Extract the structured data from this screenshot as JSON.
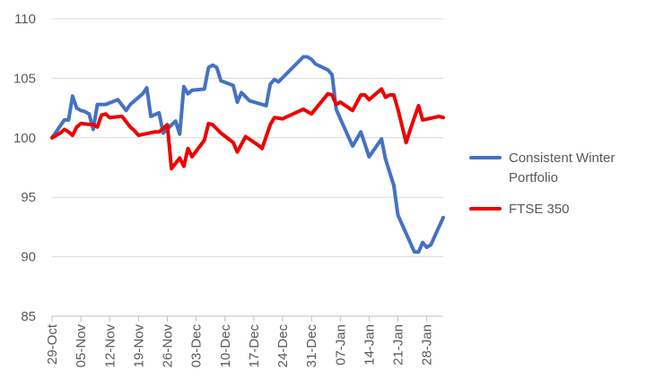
{
  "chart_data": {
    "type": "line",
    "title": "",
    "xlabel": "",
    "ylabel": "",
    "ylim": [
      85,
      110
    ],
    "yticks": [
      85,
      90,
      95,
      100,
      105,
      110
    ],
    "grid": "horizontal",
    "legend_position": "right",
    "x_tick_labels": [
      "29-Oct",
      "05-Nov",
      "12-Nov",
      "19-Nov",
      "26-Nov",
      "03-Dec",
      "10-Dec",
      "17-Dec",
      "24-Dec",
      "31-Dec",
      "07-Jan",
      "14-Jan",
      "21-Jan",
      "28-Jan"
    ],
    "x_tick_dates": [
      "2018-10-29",
      "2018-11-05",
      "2018-11-12",
      "2018-11-19",
      "2018-11-26",
      "2018-12-03",
      "2018-12-10",
      "2018-12-17",
      "2018-12-24",
      "2018-12-31",
      "2019-01-07",
      "2019-01-14",
      "2019-01-21",
      "2019-01-28"
    ],
    "x_range": [
      "2018-10-29",
      "2019-02-01"
    ],
    "series": [
      {
        "name": "Consistent Winter Portfolio",
        "color": "#4472C4",
        "points": [
          [
            "2018-10-29",
            100.0
          ],
          [
            "2018-10-30",
            100.5
          ],
          [
            "2018-10-31",
            101.0
          ],
          [
            "2018-11-01",
            101.5
          ],
          [
            "2018-11-02",
            101.5
          ],
          [
            "2018-11-03",
            103.5
          ],
          [
            "2018-11-04",
            102.5
          ],
          [
            "2018-11-05",
            102.3
          ],
          [
            "2018-11-06",
            102.2
          ],
          [
            "2018-11-07",
            102.0
          ],
          [
            "2018-11-08",
            100.7
          ],
          [
            "2018-11-09",
            102.8
          ],
          [
            "2018-11-11",
            102.8
          ],
          [
            "2018-11-14",
            103.2
          ],
          [
            "2018-11-16",
            102.3
          ],
          [
            "2018-11-17",
            102.8
          ],
          [
            "2018-11-20",
            103.7
          ],
          [
            "2018-11-21",
            104.2
          ],
          [
            "2018-11-22",
            101.8
          ],
          [
            "2018-11-24",
            102.1
          ],
          [
            "2018-11-25",
            100.4
          ],
          [
            "2018-11-28",
            101.4
          ],
          [
            "2018-11-29",
            100.3
          ],
          [
            "2018-11-30",
            104.3
          ],
          [
            "2018-12-01",
            103.7
          ],
          [
            "2018-12-02",
            104.0
          ],
          [
            "2018-12-05",
            104.1
          ],
          [
            "2018-12-06",
            105.9
          ],
          [
            "2018-12-07",
            106.1
          ],
          [
            "2018-12-08",
            105.9
          ],
          [
            "2018-12-09",
            104.8
          ],
          [
            "2018-12-12",
            104.4
          ],
          [
            "2018-12-13",
            103.0
          ],
          [
            "2018-12-14",
            103.8
          ],
          [
            "2018-12-16",
            103.1
          ],
          [
            "2018-12-20",
            102.7
          ],
          [
            "2018-12-21",
            104.5
          ],
          [
            "2018-12-22",
            104.9
          ],
          [
            "2018-12-23",
            104.7
          ],
          [
            "2018-12-29",
            106.8
          ],
          [
            "2018-12-30",
            106.8
          ],
          [
            "2018-12-31",
            106.6
          ],
          [
            "2019-01-01",
            106.2
          ],
          [
            "2019-01-04",
            105.7
          ],
          [
            "2019-01-05",
            105.3
          ],
          [
            "2019-01-06",
            102.4
          ],
          [
            "2019-01-07",
            101.6
          ],
          [
            "2019-01-10",
            99.3
          ],
          [
            "2019-01-12",
            100.5
          ],
          [
            "2019-01-14",
            98.4
          ],
          [
            "2019-01-17",
            99.9
          ],
          [
            "2019-01-18",
            98.2
          ],
          [
            "2019-01-20",
            96.0
          ],
          [
            "2019-01-21",
            93.5
          ],
          [
            "2019-01-25",
            90.4
          ],
          [
            "2019-01-26",
            90.4
          ],
          [
            "2019-01-27",
            91.2
          ],
          [
            "2019-01-28",
            90.8
          ],
          [
            "2019-01-29",
            91.0
          ],
          [
            "2019-02-01",
            93.3
          ]
        ]
      },
      {
        "name": "FTSE 350",
        "color": "#EE0000",
        "points": [
          [
            "2018-10-29",
            100.0
          ],
          [
            "2018-10-31",
            100.4
          ],
          [
            "2018-11-01",
            100.7
          ],
          [
            "2018-11-02",
            100.5
          ],
          [
            "2018-11-03",
            100.2
          ],
          [
            "2018-11-04",
            100.9
          ],
          [
            "2018-11-05",
            101.2
          ],
          [
            "2018-11-08",
            101.1
          ],
          [
            "2018-11-09",
            100.9
          ],
          [
            "2018-11-10",
            101.9
          ],
          [
            "2018-11-11",
            102.0
          ],
          [
            "2018-11-12",
            101.7
          ],
          [
            "2018-11-15",
            101.8
          ],
          [
            "2018-11-17",
            100.9
          ],
          [
            "2018-11-18",
            100.6
          ],
          [
            "2018-11-19",
            100.2
          ],
          [
            "2018-11-23",
            100.5
          ],
          [
            "2018-11-24",
            100.5
          ],
          [
            "2018-11-26",
            101.1
          ],
          [
            "2018-11-27",
            97.4
          ],
          [
            "2018-11-29",
            98.3
          ],
          [
            "2018-11-30",
            97.6
          ],
          [
            "2018-12-01",
            99.1
          ],
          [
            "2018-12-02",
            98.4
          ],
          [
            "2018-12-05",
            99.8
          ],
          [
            "2018-12-06",
            101.2
          ],
          [
            "2018-12-07",
            101.1
          ],
          [
            "2018-12-09",
            100.4
          ],
          [
            "2018-12-12",
            99.6
          ],
          [
            "2018-12-13",
            98.8
          ],
          [
            "2018-12-15",
            100.1
          ],
          [
            "2018-12-18",
            99.4
          ],
          [
            "2018-12-19",
            99.1
          ],
          [
            "2018-12-21",
            101.1
          ],
          [
            "2018-12-22",
            101.7
          ],
          [
            "2018-12-24",
            101.6
          ],
          [
            "2018-12-29",
            102.4
          ],
          [
            "2018-12-31",
            102.0
          ],
          [
            "2019-01-04",
            103.7
          ],
          [
            "2019-01-05",
            103.6
          ],
          [
            "2019-01-06",
            102.8
          ],
          [
            "2019-01-07",
            103.0
          ],
          [
            "2019-01-10",
            102.3
          ],
          [
            "2019-01-12",
            103.6
          ],
          [
            "2019-01-13",
            103.6
          ],
          [
            "2019-01-14",
            103.2
          ],
          [
            "2019-01-15",
            103.5
          ],
          [
            "2019-01-17",
            104.1
          ],
          [
            "2019-01-18",
            103.4
          ],
          [
            "2019-01-19",
            103.6
          ],
          [
            "2019-01-20",
            103.6
          ],
          [
            "2019-01-21",
            102.4
          ],
          [
            "2019-01-23",
            99.6
          ],
          [
            "2019-01-24",
            100.7
          ],
          [
            "2019-01-26",
            102.7
          ],
          [
            "2019-01-27",
            101.5
          ],
          [
            "2019-01-31",
            101.8
          ],
          [
            "2019-02-01",
            101.7
          ]
        ]
      }
    ],
    "legend": [
      {
        "label_lines": [
          "Consistent Winter",
          "Portfolio"
        ],
        "color": "#4472C4"
      },
      {
        "label_lines": [
          "FTSE 350"
        ],
        "color": "#EE0000"
      }
    ]
  }
}
